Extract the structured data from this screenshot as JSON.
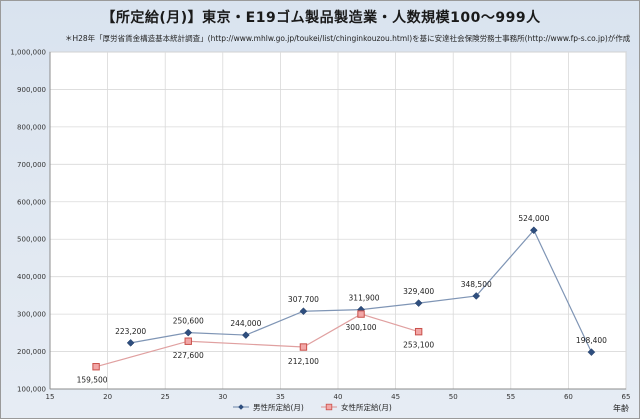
{
  "chart_data": {
    "type": "line",
    "title": "【所定給(月)】東京・E19ゴム製品製造業・人数規模100～999人",
    "subtitle": "＊H28年「厚労省賃金構造基本統計調査」(http://www.mhlw.go.jp/toukei/list/chinginkouzou.html)を基に安達社会保険労務士事務所(http://www.fp-s.co.jp)が作成",
    "xlabel": "年齢",
    "ylabel": "",
    "xlim": [
      15,
      65
    ],
    "ylim": [
      100000,
      1000000
    ],
    "x_ticks": [
      "15",
      "20",
      "25",
      "30",
      "35",
      "40",
      "45",
      "50",
      "55",
      "60",
      "65"
    ],
    "y_ticks": [
      "100,000",
      "200,000",
      "300,000",
      "400,000",
      "500,000",
      "600,000",
      "700,000",
      "800,000",
      "900,000",
      "1,000,000"
    ],
    "grid": true,
    "legend_position": "bottom",
    "series": [
      {
        "name": "男性所定給(月)",
        "color": "#7f95b5",
        "marker_color": "#2e4e7e",
        "marker": "diamond",
        "points": [
          {
            "x": 22,
            "y": 223200,
            "label": "223,200"
          },
          {
            "x": 27,
            "y": 250600,
            "label": "250,600"
          },
          {
            "x": 32,
            "y": 244000,
            "label": "244,000"
          },
          {
            "x": 37,
            "y": 307700,
            "label": "307,700"
          },
          {
            "x": 42,
            "y": 311900,
            "label": "311,900"
          },
          {
            "x": 47,
            "y": 329400,
            "label": "329,400"
          },
          {
            "x": 52,
            "y": 348500,
            "label": "348,500"
          },
          {
            "x": 57,
            "y": 524000,
            "label": "524,000"
          },
          {
            "x": 62,
            "y": 198400,
            "label": "198,400"
          }
        ]
      },
      {
        "name": "女性所定給(月)",
        "color": "#e0a0a0",
        "marker_color": "#c9504a",
        "marker": "square",
        "points": [
          {
            "x": 19,
            "y": 159500,
            "label": "159,500"
          },
          {
            "x": 27,
            "y": 227600,
            "label": "227,600"
          },
          {
            "x": 37,
            "y": 212100,
            "label": "212,100"
          },
          {
            "x": 42,
            "y": 300100,
            "label": "300,100"
          },
          {
            "x": 47,
            "y": 253100,
            "label": "253,100"
          }
        ]
      }
    ]
  }
}
